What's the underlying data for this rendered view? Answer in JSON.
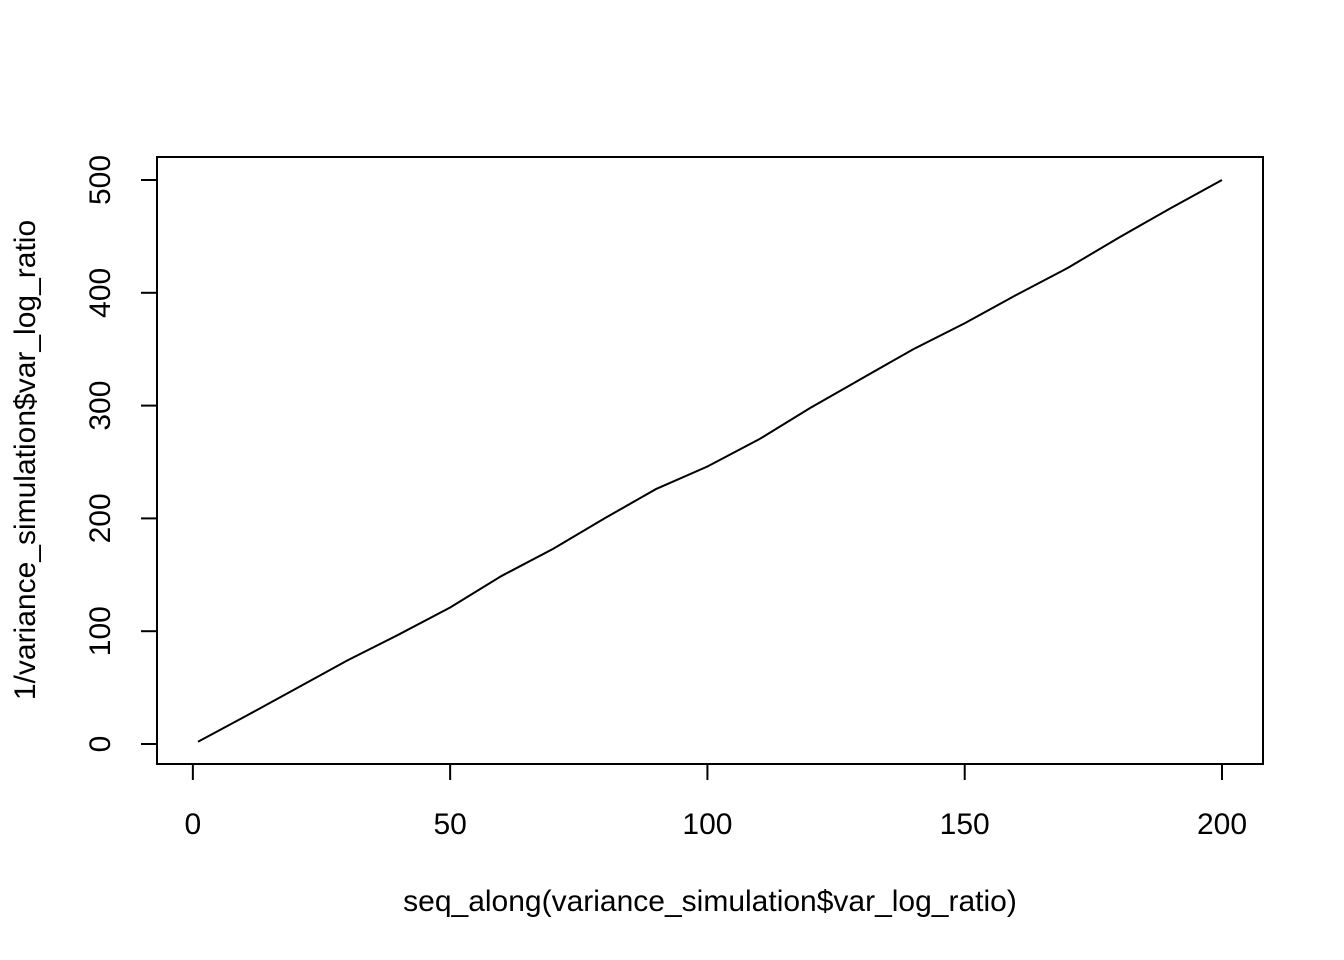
{
  "chart_data": {
    "type": "line",
    "title": "",
    "xlabel": "seq_along(variance_simulation$var_log_ratio)",
    "ylabel": "1/variance_simulation$var_log_ratio",
    "xlim": [
      1,
      200
    ],
    "ylim": [
      0,
      500
    ],
    "x_ticks": [
      0,
      50,
      100,
      150,
      200
    ],
    "y_ticks": [
      0,
      100,
      200,
      300,
      400,
      500
    ],
    "x_tick_labels": [
      "0",
      "50",
      "100",
      "150",
      "200"
    ],
    "y_tick_labels": [
      "0",
      "100",
      "200",
      "300",
      "400",
      "500"
    ],
    "grid": false,
    "legend": "none",
    "line_color": "#000000",
    "series": [
      {
        "x": [
          1,
          10,
          20,
          30,
          40,
          50,
          60,
          70,
          80,
          90,
          100,
          110,
          120,
          130,
          140,
          150,
          160,
          170,
          180,
          190,
          200
        ],
        "values": [
          2,
          24,
          49,
          74,
          97,
          121,
          149,
          173,
          200,
          226,
          246,
          270,
          298,
          324,
          350,
          373,
          398,
          422,
          449,
          475,
          500
        ]
      }
    ]
  }
}
